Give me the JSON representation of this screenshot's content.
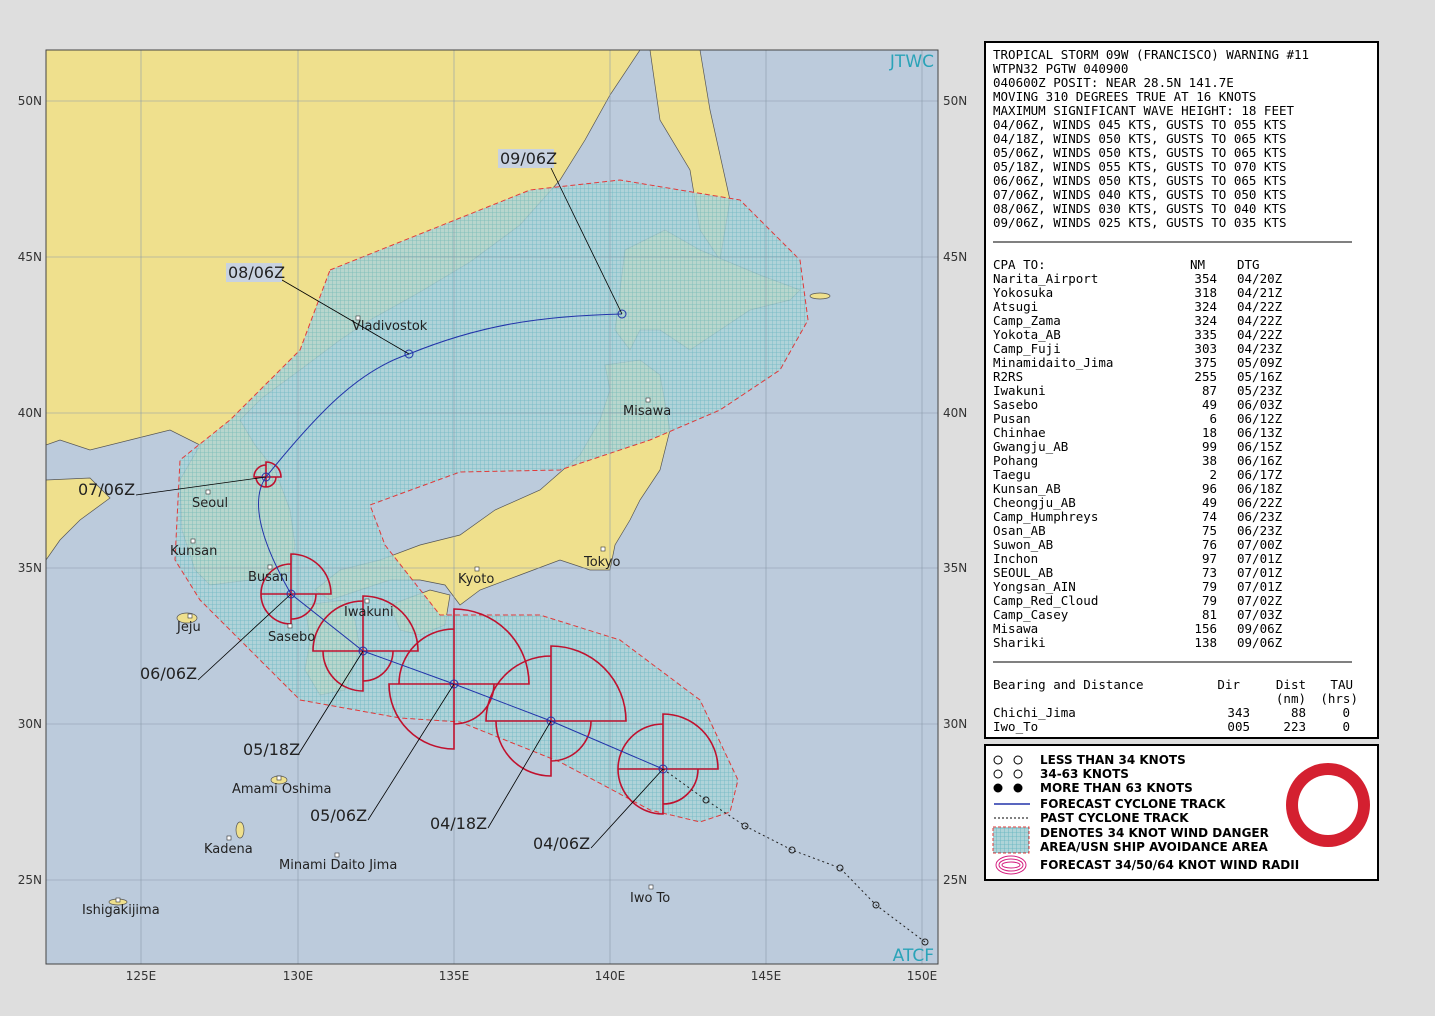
{
  "header": {
    "agency": "JTWC",
    "system": "ATCF"
  },
  "map": {
    "lat_labels": [
      "50N",
      "45N",
      "40N",
      "35N",
      "30N",
      "25N"
    ],
    "lon_labels": [
      "125E",
      "130E",
      "135E",
      "140E",
      "145E",
      "150E"
    ],
    "places": [
      "Vladivostok",
      "Seoul",
      "Kunsan",
      "Busan",
      "Jeju",
      "Sasebo",
      "Iwakuni",
      "Kyoto",
      "Tokyo",
      "Misawa",
      "Amami Oshima",
      "Kadena",
      "Minami Daito Jima",
      "Iwo To",
      "Ishigakijima"
    ],
    "forecast_labels": [
      "09/06Z",
      "08/06Z",
      "07/06Z",
      "06/06Z",
      "05/18Z",
      "05/06Z",
      "04/18Z",
      "04/06Z"
    ]
  },
  "warning": {
    "lines": [
      "TROPICAL STORM 09W (FRANCISCO) WARNING #11",
      "WTPN32 PGTW 040900",
      "040600Z POSIT: NEAR 28.5N 141.7E",
      "MOVING 310 DEGREES TRUE AT 16 KNOTS",
      "MAXIMUM SIGNIFICANT WAVE HEIGHT: 18 FEET",
      "04/06Z, WINDS 045 KTS, GUSTS TO 055 KTS",
      "04/18Z, WINDS 050 KTS, GUSTS TO 065 KTS",
      "05/06Z, WINDS 050 KTS, GUSTS TO 065 KTS",
      "05/18Z, WINDS 055 KTS, GUSTS TO 070 KTS",
      "06/06Z, WINDS 050 KTS, GUSTS TO 065 KTS",
      "07/06Z, WINDS 040 KTS, GUSTS TO 050 KTS",
      "08/06Z, WINDS 030 KTS, GUSTS TO 040 KTS",
      "09/06Z, WINDS 025 KTS, GUSTS TO 035 KTS"
    ]
  },
  "cpa": {
    "header": [
      "CPA TO:",
      "NM",
      "DTG"
    ],
    "rows": [
      [
        "Narita_Airport",
        "354",
        "04/20Z"
      ],
      [
        "Yokosuka",
        "318",
        "04/21Z"
      ],
      [
        "Atsugi",
        "324",
        "04/22Z"
      ],
      [
        "Camp_Zama",
        "324",
        "04/22Z"
      ],
      [
        "Yokota_AB",
        "335",
        "04/22Z"
      ],
      [
        "Camp_Fuji",
        "303",
        "04/23Z"
      ],
      [
        "Minamidaito_Jima",
        "375",
        "05/09Z"
      ],
      [
        "R2RS",
        "255",
        "05/16Z"
      ],
      [
        "Iwakuni",
        "87",
        "05/23Z"
      ],
      [
        "Sasebo",
        "49",
        "06/03Z"
      ],
      [
        "Pusan",
        "6",
        "06/12Z"
      ],
      [
        "Chinhae",
        "18",
        "06/13Z"
      ],
      [
        "Gwangju_AB",
        "99",
        "06/15Z"
      ],
      [
        "Pohang",
        "38",
        "06/16Z"
      ],
      [
        "Taegu",
        "2",
        "06/17Z"
      ],
      [
        "Kunsan_AB",
        "96",
        "06/18Z"
      ],
      [
        "Cheongju_AB",
        "49",
        "06/22Z"
      ],
      [
        "Camp_Humphreys",
        "74",
        "06/23Z"
      ],
      [
        "Osan_AB",
        "75",
        "06/23Z"
      ],
      [
        "Suwon_AB",
        "76",
        "07/00Z"
      ],
      [
        "Inchon",
        "97",
        "07/01Z"
      ],
      [
        "SEOUL_AB",
        "73",
        "07/01Z"
      ],
      [
        "Yongsan_AIN",
        "79",
        "07/01Z"
      ],
      [
        "Camp_Red_Cloud",
        "79",
        "07/02Z"
      ],
      [
        "Camp_Casey",
        "81",
        "07/03Z"
      ],
      [
        "Misawa",
        "156",
        "09/06Z"
      ],
      [
        "Shariki",
        "138",
        "09/06Z"
      ]
    ]
  },
  "bearing": {
    "title": "Bearing and Distance",
    "headers": [
      "Dir",
      "Dist",
      "TAU"
    ],
    "units": [
      "(nm)",
      "(hrs)"
    ],
    "rows": [
      [
        "Chichi_Jima",
        "343",
        "88",
        "0"
      ],
      [
        "Iwo_To",
        "005",
        "223",
        "0"
      ]
    ]
  },
  "legend": {
    "items": [
      "LESS THAN 34 KNOTS",
      "34-63 KNOTS",
      "MORE THAN 63 KNOTS",
      "FORECAST CYCLONE TRACK",
      "PAST CYCLONE TRACK",
      "DENOTES 34 KNOT WIND DANGER",
      "AREA/USN SHIP AVOIDANCE AREA",
      "FORECAST 34/50/64 KNOT WIND RADII"
    ]
  }
}
